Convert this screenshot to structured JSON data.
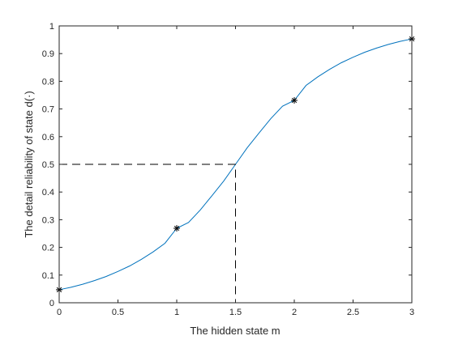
{
  "chart_data": {
    "type": "line",
    "xlabel": "The hidden state m",
    "ylabel": "The detail reliability of state d(·)",
    "xlim": [
      0,
      3
    ],
    "ylim": [
      0,
      1
    ],
    "xticks": [
      "0",
      "0.5",
      "1",
      "1.5",
      "2",
      "2.5",
      "3"
    ],
    "yticks": [
      "0",
      "0.1",
      "0.2",
      "0.3",
      "0.4",
      "0.5",
      "0.6",
      "0.7",
      "0.8",
      "0.9",
      "1"
    ],
    "grid": false,
    "legend": "none",
    "series": [
      {
        "kind": "curve",
        "color": "#0072BD",
        "x": [
          0,
          0.1,
          0.2,
          0.3,
          0.4,
          0.5,
          0.6,
          0.7,
          0.8,
          0.9,
          1.0,
          1.1,
          1.2,
          1.3,
          1.4,
          1.5,
          1.6,
          1.7,
          1.8,
          1.9,
          2.0,
          2.1,
          2.2,
          2.3,
          2.4,
          2.5,
          2.6,
          2.7,
          2.8,
          2.9,
          3.0
        ],
        "y": [
          0.047,
          0.056,
          0.067,
          0.08,
          0.095,
          0.113,
          0.133,
          0.157,
          0.184,
          0.215,
          0.269,
          0.29,
          0.335,
          0.387,
          0.44,
          0.5,
          0.56,
          0.613,
          0.665,
          0.71,
          0.731,
          0.785,
          0.816,
          0.843,
          0.867,
          0.887,
          0.905,
          0.92,
          0.933,
          0.944,
          0.953
        ]
      },
      {
        "kind": "markers",
        "marker": "asterisk",
        "color": "#000000",
        "x": [
          0,
          1,
          2,
          3
        ],
        "y": [
          0.047,
          0.269,
          0.731,
          0.953
        ]
      },
      {
        "kind": "guide",
        "style": "dashed",
        "color": "#000000",
        "x": [
          0,
          1.5,
          1.5
        ],
        "y": [
          0.5,
          0.5,
          0
        ]
      }
    ]
  }
}
